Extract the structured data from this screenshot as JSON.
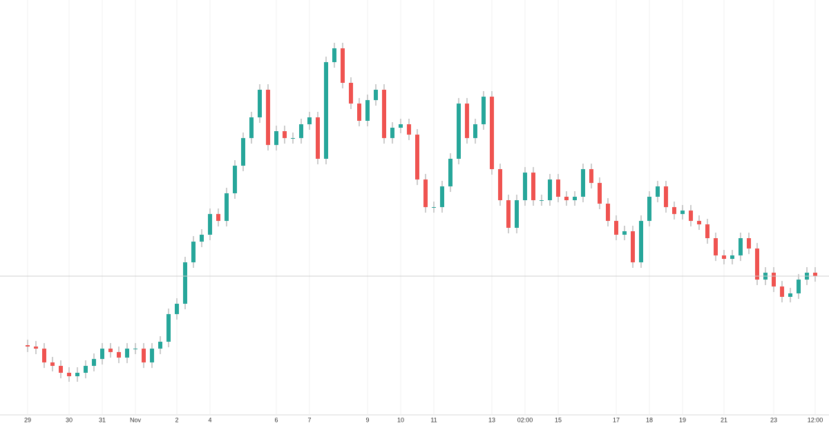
{
  "chart_data": {
    "type": "candlestick",
    "categories": [
      "29",
      null,
      null,
      null,
      null,
      "30",
      null,
      null,
      null,
      "31",
      null,
      null,
      null,
      "Nov",
      null,
      null,
      null,
      null,
      "2",
      null,
      null,
      null,
      "4",
      null,
      null,
      null,
      null,
      null,
      null,
      null,
      "6",
      null,
      null,
      null,
      "7",
      null,
      null,
      null,
      null,
      null,
      null,
      "9",
      null,
      null,
      null,
      "10",
      null,
      null,
      null,
      "11",
      null,
      null,
      null,
      null,
      null,
      null,
      "13",
      null,
      null,
      null,
      "02:00",
      null,
      null,
      null,
      "15",
      null,
      null,
      null,
      null,
      null,
      null,
      "17",
      null,
      null,
      null,
      "18",
      null,
      null,
      null,
      "19",
      null,
      null,
      null,
      null,
      "21",
      null,
      null,
      null,
      null,
      null,
      "23",
      null,
      null,
      null,
      null,
      "12:00"
    ],
    "open": [
      100,
      98,
      95,
      75,
      70,
      60,
      55,
      60,
      70,
      80,
      95,
      90,
      82,
      95,
      95,
      75,
      95,
      105,
      145,
      160,
      220,
      250,
      260,
      290,
      280,
      320,
      360,
      400,
      430,
      470,
      390,
      410,
      400,
      400,
      420,
      430,
      370,
      510,
      530,
      480,
      450,
      425,
      455,
      470,
      400,
      415,
      420,
      405,
      340,
      300,
      300,
      330,
      370,
      450,
      400,
      420,
      460,
      355,
      310,
      270,
      310,
      350,
      310,
      310,
      340,
      315,
      310,
      315,
      355,
      335,
      305,
      280,
      260,
      265,
      220,
      280,
      315,
      330,
      300,
      290,
      295,
      280,
      275,
      255,
      230,
      225,
      230,
      255,
      240,
      195,
      205,
      185,
      170,
      175,
      195,
      205
    ],
    "high": [
      108,
      106,
      103,
      83,
      78,
      68,
      68,
      78,
      88,
      103,
      103,
      98,
      103,
      103,
      103,
      103,
      113,
      153,
      168,
      228,
      258,
      268,
      298,
      298,
      328,
      368,
      408,
      438,
      478,
      478,
      418,
      418,
      408,
      428,
      438,
      438,
      518,
      538,
      538,
      488,
      458,
      463,
      478,
      478,
      423,
      428,
      428,
      413,
      348,
      308,
      338,
      378,
      458,
      458,
      428,
      468,
      468,
      363,
      318,
      318,
      358,
      358,
      318,
      348,
      348,
      323,
      323,
      363,
      363,
      343,
      313,
      288,
      273,
      273,
      288,
      323,
      338,
      338,
      308,
      303,
      303,
      288,
      283,
      263,
      238,
      238,
      263,
      263,
      248,
      213,
      213,
      193,
      183,
      203,
      213,
      213
    ],
    "low": [
      90,
      87,
      67,
      62,
      52,
      47,
      47,
      52,
      62,
      72,
      82,
      74,
      74,
      87,
      67,
      67,
      87,
      97,
      137,
      152,
      212,
      242,
      252,
      272,
      272,
      312,
      352,
      392,
      422,
      382,
      382,
      392,
      392,
      392,
      412,
      362,
      362,
      502,
      472,
      442,
      417,
      417,
      447,
      392,
      392,
      407,
      397,
      332,
      292,
      292,
      292,
      322,
      362,
      392,
      392,
      412,
      347,
      302,
      262,
      262,
      302,
      302,
      302,
      302,
      307,
      302,
      302,
      307,
      327,
      297,
      272,
      252,
      252,
      212,
      212,
      272,
      307,
      292,
      282,
      282,
      272,
      267,
      247,
      222,
      217,
      217,
      222,
      232,
      187,
      187,
      177,
      162,
      162,
      167,
      187,
      192
    ],
    "close": [
      98,
      95,
      75,
      70,
      60,
      55,
      60,
      70,
      80,
      95,
      90,
      82,
      95,
      95,
      75,
      95,
      105,
      145,
      160,
      220,
      250,
      260,
      290,
      280,
      320,
      360,
      400,
      430,
      470,
      390,
      410,
      400,
      400,
      420,
      430,
      370,
      510,
      530,
      480,
      450,
      425,
      455,
      470,
      400,
      415,
      420,
      405,
      340,
      300,
      300,
      330,
      370,
      450,
      400,
      420,
      460,
      355,
      310,
      270,
      310,
      350,
      310,
      310,
      340,
      315,
      310,
      315,
      355,
      335,
      305,
      280,
      260,
      265,
      220,
      280,
      315,
      330,
      300,
      290,
      295,
      280,
      275,
      255,
      230,
      225,
      230,
      255,
      240,
      195,
      205,
      185,
      170,
      175,
      195,
      205,
      200
    ],
    "up_color": "#26a69a",
    "down_color": "#ef5350",
    "ylim": [
      0,
      600
    ],
    "grid": true
  }
}
